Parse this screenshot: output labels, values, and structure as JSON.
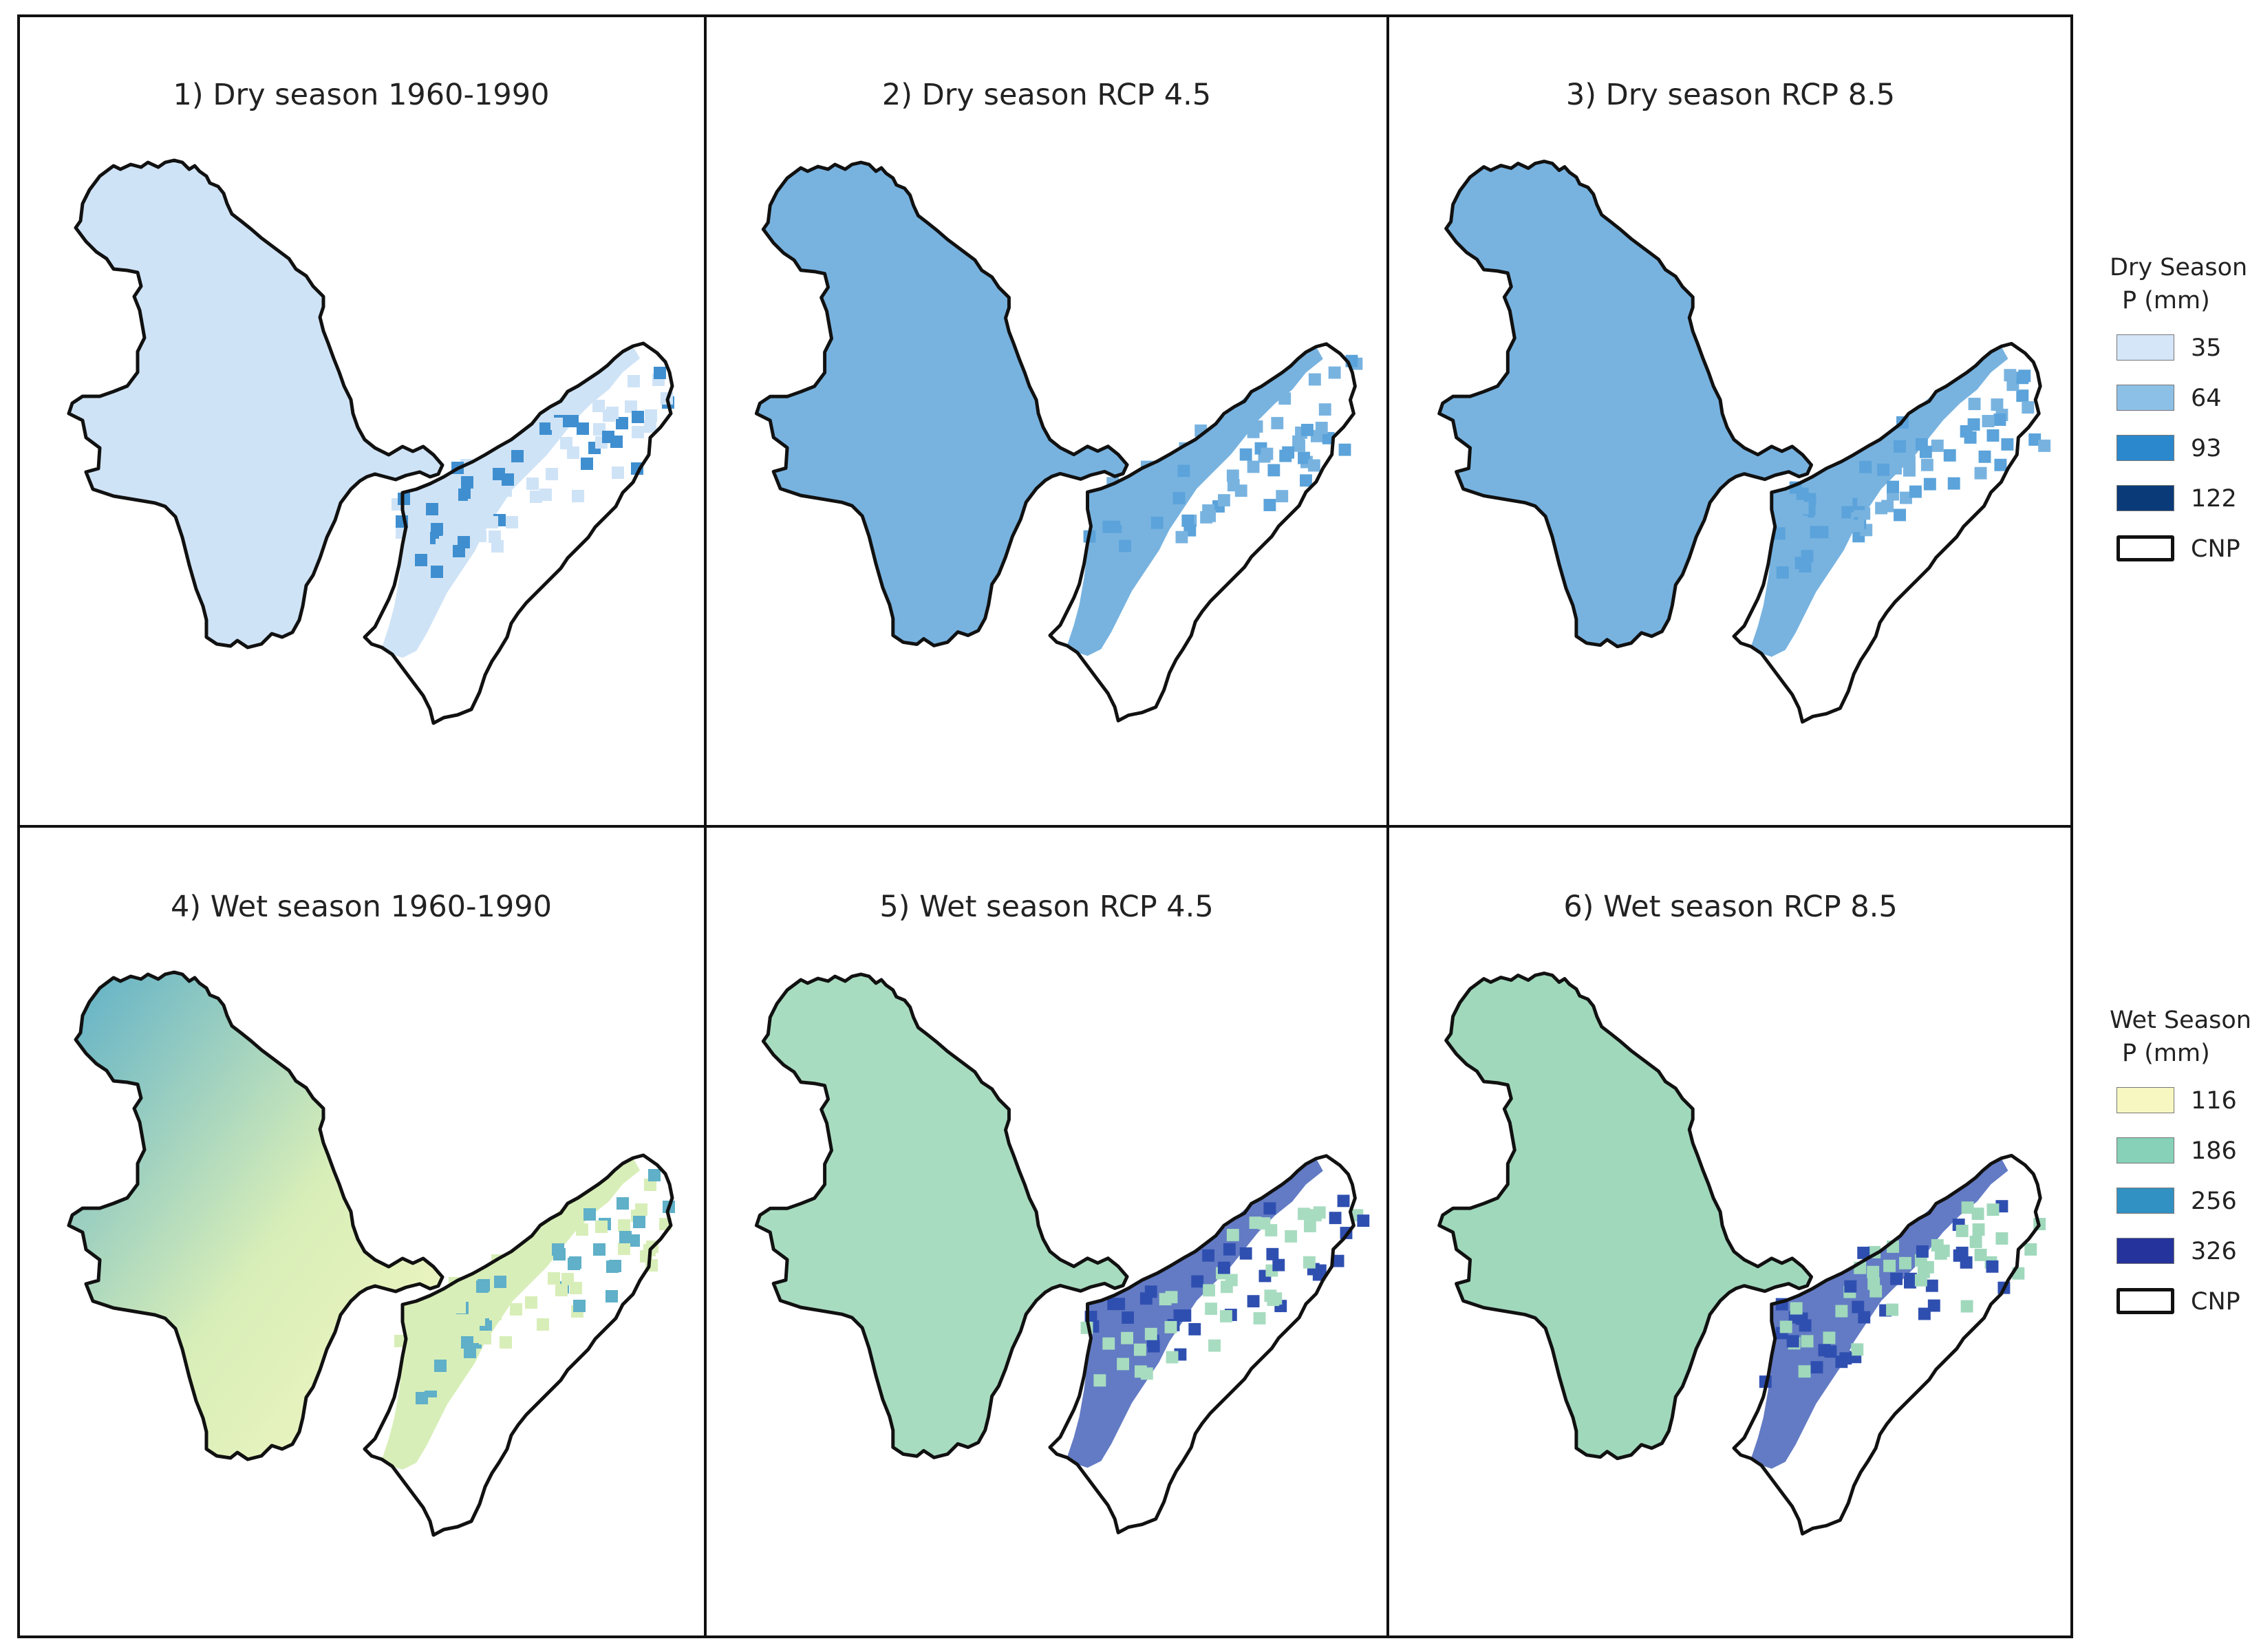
{
  "panels": [
    {
      "title": "1) Dry season 1960-1990",
      "season": "dry",
      "scenario": "1960-1990"
    },
    {
      "title": "2) Dry season RCP 4.5",
      "season": "dry",
      "scenario": "RCP 4.5"
    },
    {
      "title": "3) Dry season RCP 8.5",
      "season": "dry",
      "scenario": "RCP 8.5"
    },
    {
      "title": "4) Wet season 1960-1990",
      "season": "wet",
      "scenario": "1960-1990"
    },
    {
      "title": "5) Wet season RCP 4.5",
      "season": "wet",
      "scenario": "RCP 4.5"
    },
    {
      "title": "6) Wet season RCP 8.5",
      "season": "wet",
      "scenario": "RCP 8.5"
    }
  ],
  "legends": {
    "dry": {
      "title_line1": "Dry Season",
      "title_line2": "P (mm)",
      "items": [
        {
          "label": "35",
          "color": "#d4e6f8"
        },
        {
          "label": "64",
          "color": "#8dc0e6"
        },
        {
          "label": "93",
          "color": "#2b88cc"
        },
        {
          "label": "122",
          "color": "#0b3a78"
        }
      ],
      "boundary_label": "CNP"
    },
    "wet": {
      "title_line1": "Wet Season",
      "title_line2": "P (mm)",
      "items": [
        {
          "label": "116",
          "color": "#f7f7c2"
        },
        {
          "label": "186",
          "color": "#86d1b8"
        },
        {
          "label": "256",
          "color": "#3191c2"
        },
        {
          "label": "326",
          "color": "#25339c"
        }
      ],
      "boundary_label": "CNP"
    }
  },
  "fills": {
    "dry_base": [
      "#cfe3f6",
      "#78b3e0",
      "#78b3e0"
    ],
    "dry_accent": [
      "#3f8fd0",
      "#5ba3da",
      "#5ba3da"
    ],
    "wet_base": [
      "#d8eeb8",
      "#a8dcc0",
      "#a0d8bc"
    ],
    "wet_accent": [
      "#5fb0c8",
      "#2f4fb0",
      "#2f4fb0"
    ]
  }
}
